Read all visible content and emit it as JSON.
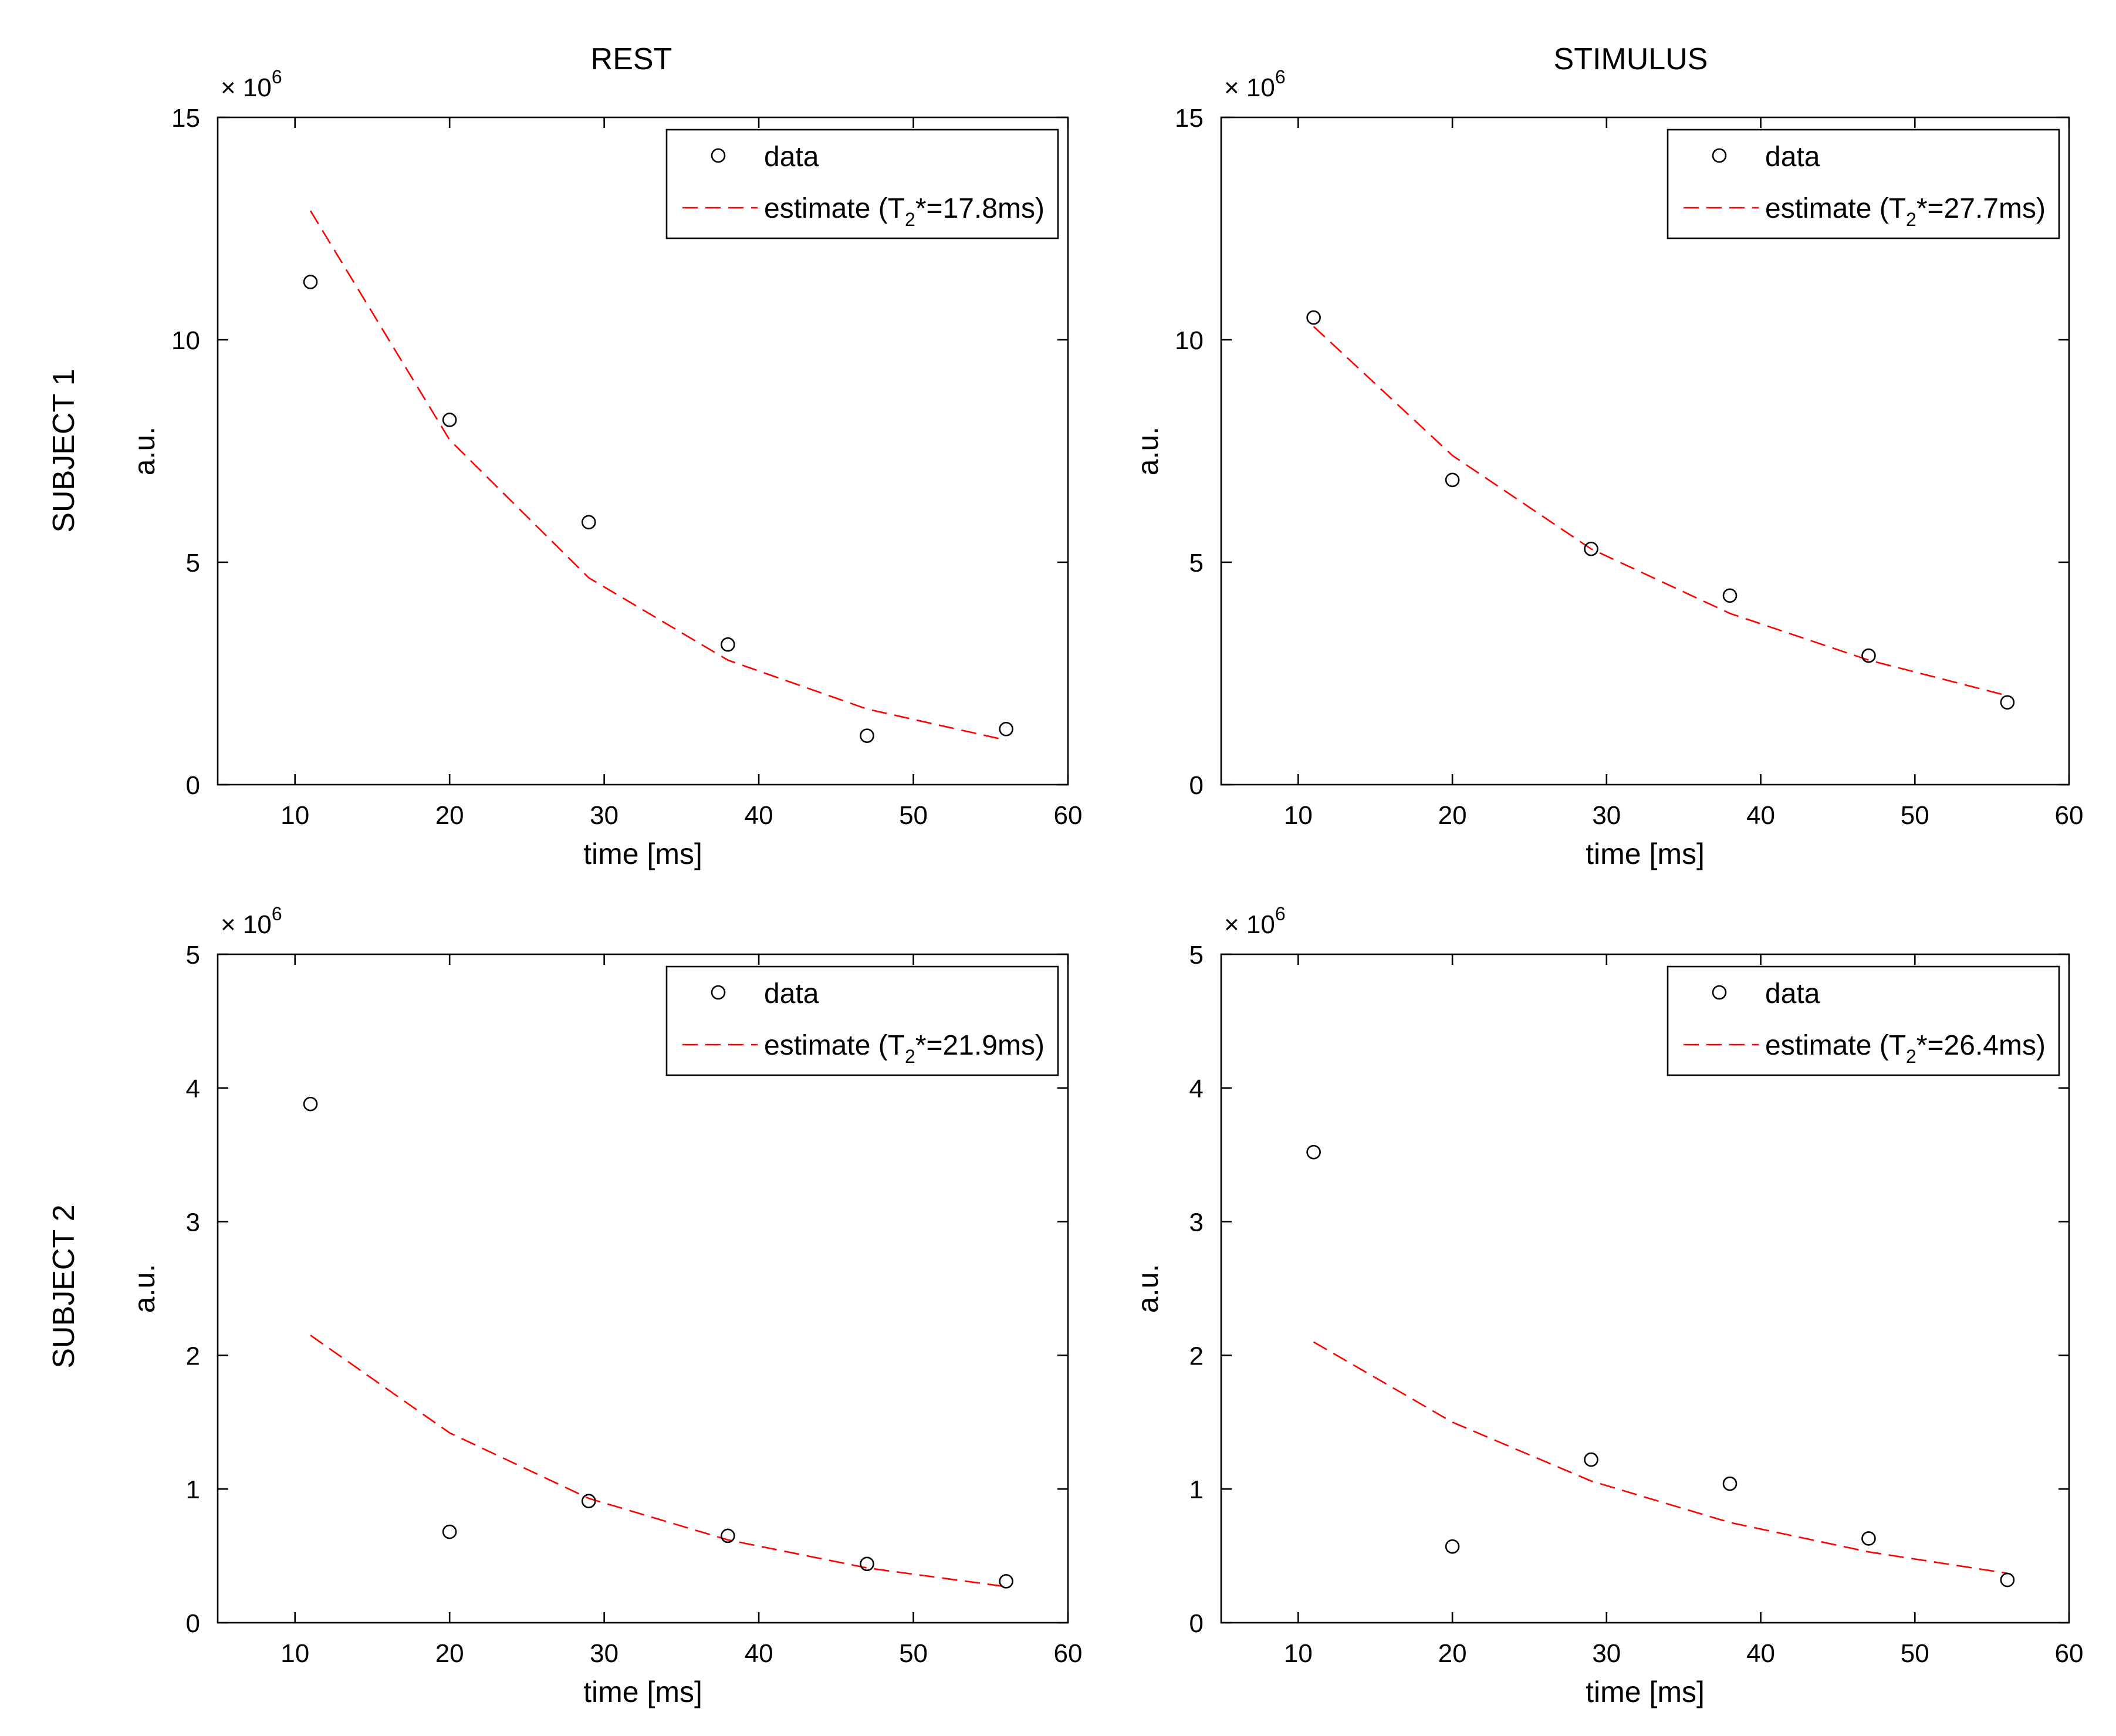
{
  "figure": {
    "column_titles": [
      "REST",
      "STIMULUS"
    ],
    "row_titles": [
      "SUBJECT 1",
      "SUBJECT 2"
    ]
  },
  "colors": {
    "estimate": "#ff0000",
    "data": "#000000"
  },
  "chart_data": [
    {
      "type": "scatter",
      "panel": "subject1-rest",
      "xlabel": "time [ms]",
      "ylabel": "a.u.",
      "exponent_base": "× 10",
      "exponent_power": "6",
      "xlim": [
        5,
        60
      ],
      "ylim": [
        0,
        15
      ],
      "xticks": [
        10,
        20,
        30,
        40,
        50,
        60
      ],
      "yticks": [
        0,
        5,
        10,
        15
      ],
      "legend": {
        "data_label": "data",
        "estimate_prefix": "estimate (T",
        "estimate_sub": "2",
        "estimate_suffix": "*=17.8ms)"
      },
      "series": [
        {
          "name": "data",
          "x": [
            11,
            20,
            29,
            38,
            47,
            56
          ],
          "values": [
            11.3,
            8.2,
            5.9,
            3.15,
            1.1,
            1.25
          ]
        },
        {
          "name": "estimate",
          "x": [
            11,
            20,
            29,
            38,
            47,
            56
          ],
          "values": [
            12.9,
            7.75,
            4.65,
            2.8,
            1.7,
            1.0
          ]
        }
      ]
    },
    {
      "type": "scatter",
      "panel": "subject1-stimulus",
      "xlabel": "time [ms]",
      "ylabel": "a.u.",
      "exponent_base": "× 10",
      "exponent_power": "6",
      "xlim": [
        5,
        60
      ],
      "ylim": [
        0,
        15
      ],
      "xticks": [
        10,
        20,
        30,
        40,
        50,
        60
      ],
      "yticks": [
        0,
        5,
        10,
        15
      ],
      "legend": {
        "data_label": "data",
        "estimate_prefix": "estimate (T",
        "estimate_sub": "2",
        "estimate_suffix": "*=27.7ms)"
      },
      "series": [
        {
          "name": "data",
          "x": [
            11,
            20,
            29,
            38,
            47,
            56
          ],
          "values": [
            10.5,
            6.85,
            5.3,
            4.25,
            2.9,
            1.85
          ]
        },
        {
          "name": "estimate",
          "x": [
            11,
            20,
            29,
            38,
            47,
            56
          ],
          "values": [
            10.3,
            7.4,
            5.3,
            3.85,
            2.8,
            2.0
          ]
        }
      ]
    },
    {
      "type": "scatter",
      "panel": "subject2-rest",
      "xlabel": "time [ms]",
      "ylabel": "a.u.",
      "exponent_base": "× 10",
      "exponent_power": "6",
      "xlim": [
        5,
        60
      ],
      "ylim": [
        0,
        5
      ],
      "xticks": [
        10,
        20,
        30,
        40,
        50,
        60
      ],
      "yticks": [
        0,
        1,
        2,
        3,
        4,
        5
      ],
      "legend": {
        "data_label": "data",
        "estimate_prefix": "estimate (T",
        "estimate_sub": "2",
        "estimate_suffix": "*=21.9ms)"
      },
      "series": [
        {
          "name": "data",
          "x": [
            11,
            20,
            29,
            38,
            47,
            56
          ],
          "values": [
            3.88,
            0.68,
            0.91,
            0.65,
            0.44,
            0.31
          ]
        },
        {
          "name": "estimate",
          "x": [
            11,
            20,
            29,
            38,
            47,
            56
          ],
          "values": [
            2.15,
            1.42,
            0.93,
            0.62,
            0.41,
            0.27
          ]
        }
      ]
    },
    {
      "type": "scatter",
      "panel": "subject2-stimulus",
      "xlabel": "time [ms]",
      "ylabel": "a.u.",
      "exponent_base": "× 10",
      "exponent_power": "6",
      "xlim": [
        5,
        60
      ],
      "ylim": [
        0,
        5
      ],
      "xticks": [
        10,
        20,
        30,
        40,
        50,
        60
      ],
      "yticks": [
        0,
        1,
        2,
        3,
        4,
        5
      ],
      "legend": {
        "data_label": "data",
        "estimate_prefix": "estimate (T",
        "estimate_sub": "2",
        "estimate_suffix": "*=26.4ms)"
      },
      "series": [
        {
          "name": "data",
          "x": [
            11,
            20,
            29,
            38,
            47,
            56
          ],
          "values": [
            3.52,
            0.57,
            1.22,
            1.04,
            0.63,
            0.32
          ]
        },
        {
          "name": "estimate",
          "x": [
            11,
            20,
            29,
            38,
            47,
            56
          ],
          "values": [
            2.1,
            1.5,
            1.06,
            0.75,
            0.53,
            0.37
          ]
        }
      ]
    }
  ]
}
